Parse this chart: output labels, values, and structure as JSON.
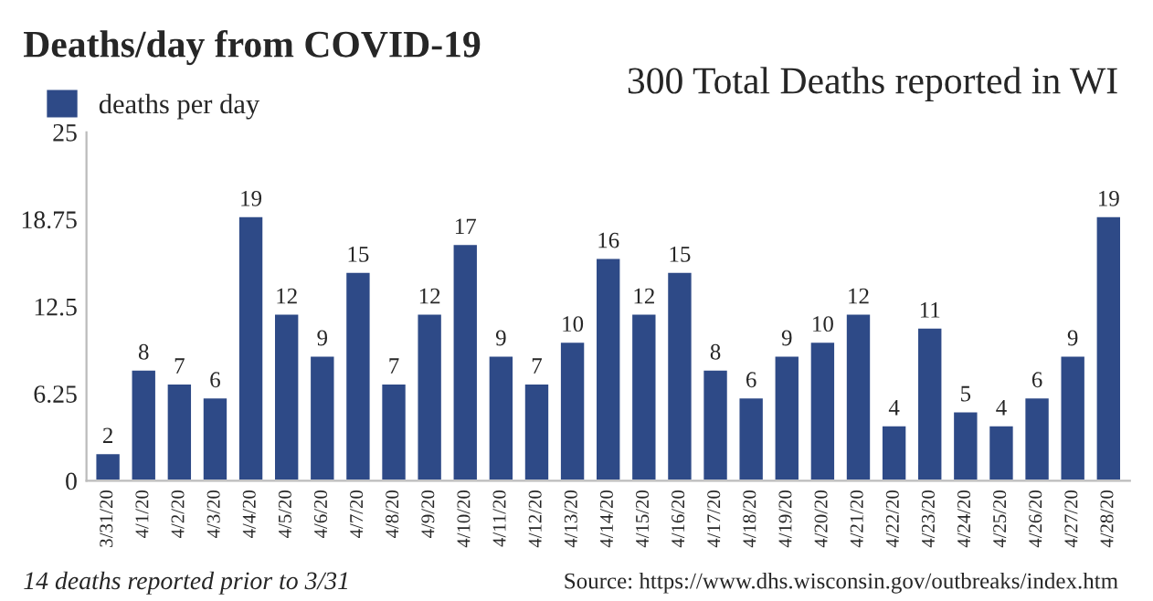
{
  "chart_data": {
    "type": "bar",
    "title": "Deaths/day from COVID-19",
    "categories": [
      "3/31/20",
      "4/1/20",
      "4/2/20",
      "4/3/20",
      "4/4/20",
      "4/5/20",
      "4/6/20",
      "4/7/20",
      "4/8/20",
      "4/9/20",
      "4/10/20",
      "4/11/20",
      "4/12/20",
      "4/13/20",
      "4/14/20",
      "4/15/20",
      "4/16/20",
      "4/17/20",
      "4/18/20",
      "4/19/20",
      "4/20/20",
      "4/21/20",
      "4/22/20",
      "4/23/20",
      "4/24/20",
      "4/25/20",
      "4/26/20",
      "4/27/20",
      "4/28/20"
    ],
    "series": [
      {
        "name": "deaths per day",
        "color": "#2e4a87",
        "values": [
          2,
          8,
          7,
          6,
          19,
          12,
          9,
          15,
          7,
          12,
          17,
          9,
          7,
          10,
          16,
          12,
          15,
          8,
          6,
          9,
          10,
          12,
          4,
          11,
          5,
          4,
          6,
          9,
          19
        ]
      }
    ],
    "ylim": [
      0,
      25
    ],
    "yticks": [
      0,
      6.25,
      12.5,
      18.75,
      25
    ],
    "data_labels": true,
    "grid": false,
    "legend": "top left",
    "annotations": [
      "300 Total Deaths reported in WI",
      "14 deaths reported prior to 3/31",
      "Source: https://www.dhs.wisconsin.gov/outbreaks/index.htm"
    ]
  }
}
